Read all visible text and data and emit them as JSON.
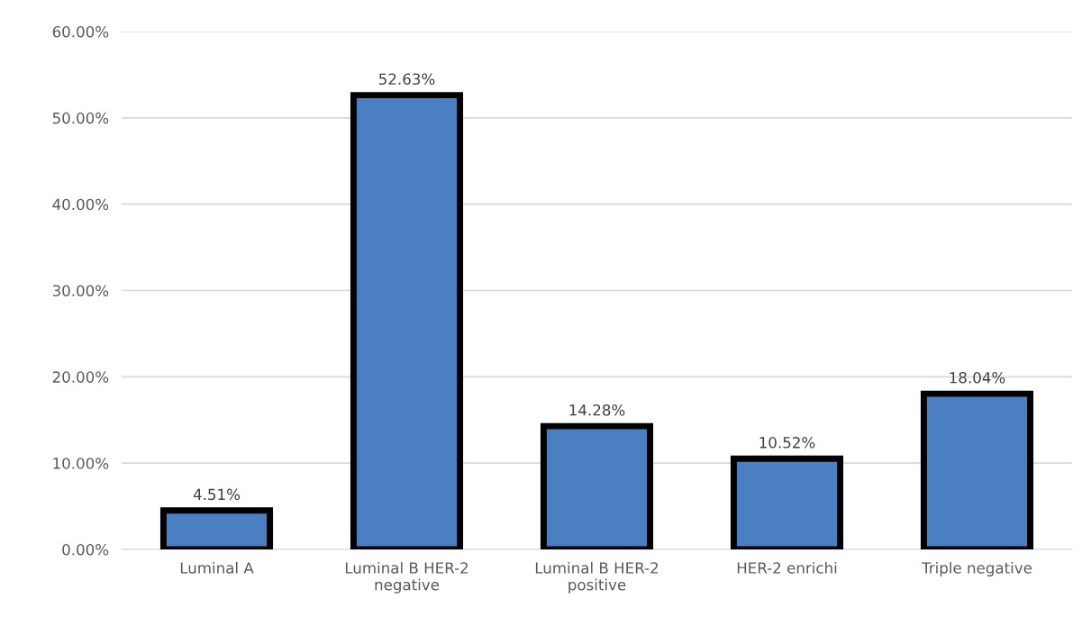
{
  "chart_data": {
    "type": "bar",
    "categories": [
      "Luminal A",
      "Luminal B HER-2 negative",
      "Luminal B HER-2 positive",
      "HER-2 enrichi",
      "Triple negative"
    ],
    "values": [
      4.51,
      52.63,
      14.28,
      10.52,
      18.04
    ],
    "value_labels": [
      "4.51%",
      "52.63%",
      "14.28%",
      "10.52%",
      "18.04%"
    ],
    "color": "#4a7fc1",
    "ylim": [
      0,
      60
    ],
    "yticks": [
      {
        "value": 0,
        "label": "0.00%"
      },
      {
        "value": 10,
        "label": "10.00%"
      },
      {
        "value": 20,
        "label": "20.00%"
      },
      {
        "value": 30,
        "label": "30.00%"
      },
      {
        "value": 40,
        "label": "40.00%"
      },
      {
        "value": 50,
        "label": "50.00%"
      },
      {
        "value": 60,
        "label": "60.00%"
      }
    ],
    "grid": "y",
    "legend": false
  }
}
